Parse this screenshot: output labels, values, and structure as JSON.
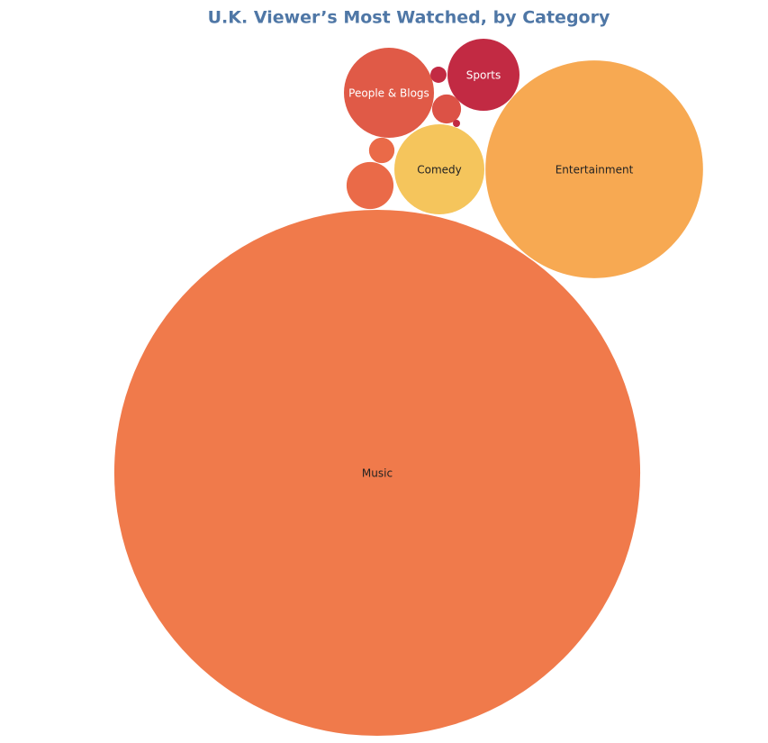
{
  "chart_data": {
    "type": "bubble",
    "title": "U.K. Viewer’s Most Watched, by Category",
    "categories": [
      "Music",
      "Entertainment",
      "Comedy",
      "People & Blogs",
      "Sports",
      null,
      null,
      null,
      null,
      null
    ],
    "values": [
      853,
      146,
      25,
      25,
      16,
      6.8,
      2,
      2.6,
      0.8,
      0.16
    ],
    "colors": [
      "#f07a4b",
      "#f7a952",
      "#f5c55c",
      "#e05a47",
      "#c22a43",
      "#ea6a48",
      "#ea6a48",
      "#dc5246",
      "#c22a43",
      "#c22a43"
    ]
  }
}
